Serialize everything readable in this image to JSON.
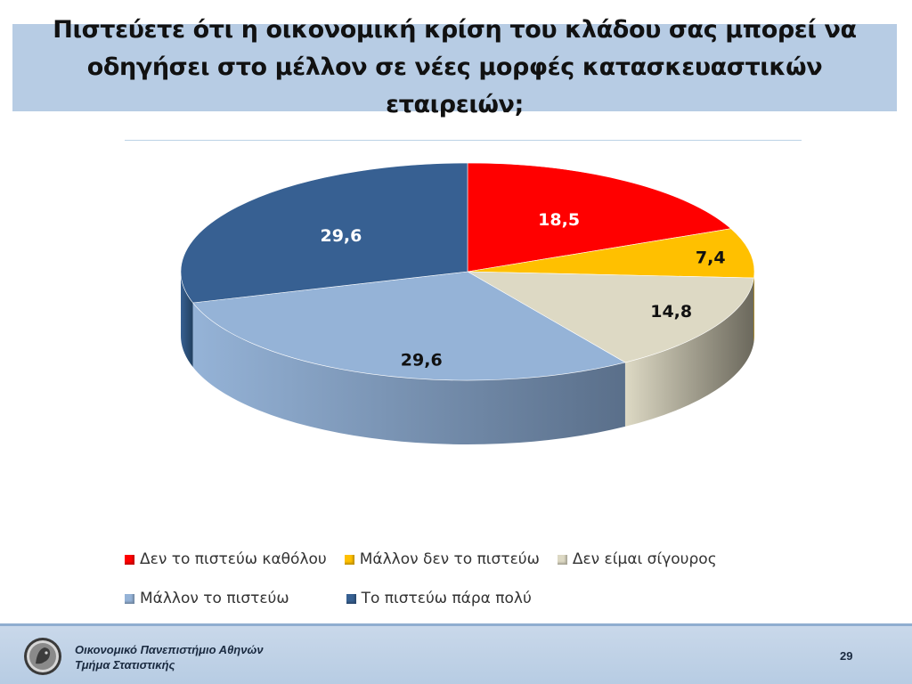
{
  "slide": {
    "title": "Πιστεύετε ότι η οικονομική κρίση του κλάδου σας μπορεί να οδηγήσει στο μέλλον σε νέες μορφές κατασκευαστικών εταιρειών;",
    "footer_line1": "Οικονομικό Πανεπιστήμιο Αθηνών",
    "footer_line2": "Τμήμα Στατιστικής",
    "page_number": "29"
  },
  "colors": {
    "title_bg": "#b7cce4",
    "footer_bg": "#c0d2e8"
  },
  "chart_data": {
    "type": "pie",
    "style": "3d",
    "title": "",
    "legend_position": "bottom",
    "slices": [
      {
        "label": "Δεν το πιστεύω καθόλου",
        "value": 18.5,
        "value_label": "18,5",
        "color": "#ff0000",
        "side": "#b30000"
      },
      {
        "label": "Μάλλον δεν το πιστεύω",
        "value": 7.4,
        "value_label": "7,4",
        "color": "#ffc000",
        "side": "#b38600"
      },
      {
        "label": "Δεν είμαι σίγουρος",
        "value": 14.8,
        "value_label": "14,8",
        "color": "#ddd9c4",
        "side": "#6b685c"
      },
      {
        "label": "Μάλλον το πιστεύω",
        "value": 29.6,
        "value_label": "29,6",
        "color": "#95b3d7",
        "side": "#5a6f8a"
      },
      {
        "label": "Το πιστεύω πάρα πολύ",
        "value": 29.6,
        "value_label": "29,6",
        "color": "#376092",
        "side": "#22405f"
      }
    ]
  }
}
